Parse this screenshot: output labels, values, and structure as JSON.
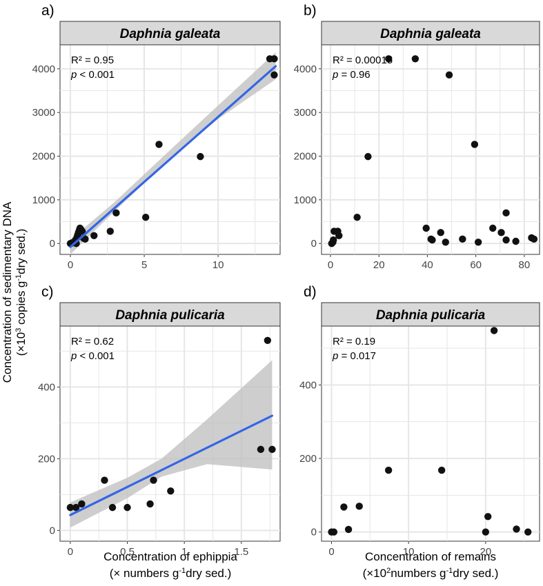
{
  "figure": {
    "y_axis_title_line1": "Concentration of sedimentary DNA",
    "y_axis_title_line2_pre": "(×10",
    "y_axis_title_line2_sup1": "3",
    "y_axis_title_line2_mid": " copies g",
    "y_axis_title_line2_sup2": "-1",
    "y_axis_title_line2_post": "dry sed.)",
    "x_axis_left_line1": "Concentration of ephippia",
    "x_axis_left_line2_pre": "(× numbers g",
    "x_axis_left_line2_sup": "-1",
    "x_axis_left_line2_post": "dry sed.)",
    "x_axis_right_line1": "Concentration of remains",
    "x_axis_right_line2_pre": "(×10",
    "x_axis_right_line2_sup1": "2",
    "x_axis_right_line2_mid": "numbers g",
    "x_axis_right_line2_sup2": "-1",
    "x_axis_right_line2_post": "dry sed.)",
    "colors": {
      "panel_bg": "#ffffff",
      "grid": "#e6e6e6",
      "strip_bg": "#d9d9d9",
      "points": "#111111",
      "fit_line": "#3366e6",
      "ci_band": "#bdbdbd"
    }
  },
  "chart_data": [
    {
      "id": "a",
      "panel_label": "a)",
      "type": "scatter",
      "title": "Daphnia galeata",
      "r2_label": "R² = 0.95",
      "p_italic": "p",
      "p_rest": " < 0.001",
      "xlim": [
        -0.7,
        14.2
      ],
      "ylim": [
        -250,
        4550
      ],
      "x_ticks": [
        0,
        5,
        10
      ],
      "y_ticks": [
        0,
        1000,
        2000,
        3000,
        4000
      ],
      "x_grid_minor": [
        2.5,
        7.5,
        12.5
      ],
      "y_grid_minor": [
        500,
        1500,
        2500,
        3500
      ],
      "points": [
        {
          "x": 0,
          "y": 0
        },
        {
          "x": 0.1,
          "y": 10
        },
        {
          "x": 0.15,
          "y": 20
        },
        {
          "x": 0.3,
          "y": 30
        },
        {
          "x": 0.35,
          "y": 80
        },
        {
          "x": 0.4,
          "y": 0
        },
        {
          "x": 0.45,
          "y": 150
        },
        {
          "x": 0.5,
          "y": 200
        },
        {
          "x": 0.55,
          "y": 250
        },
        {
          "x": 0.6,
          "y": 300
        },
        {
          "x": 0.65,
          "y": 350
        },
        {
          "x": 0.7,
          "y": 330
        },
        {
          "x": 0.8,
          "y": 280
        },
        {
          "x": 0.9,
          "y": 120
        },
        {
          "x": 1.0,
          "y": 100
        },
        {
          "x": 1.6,
          "y": 180
        },
        {
          "x": 2.7,
          "y": 280
        },
        {
          "x": 3.1,
          "y": 700
        },
        {
          "x": 5.1,
          "y": 600
        },
        {
          "x": 6.0,
          "y": 2270
        },
        {
          "x": 8.8,
          "y": 1990
        },
        {
          "x": 13.5,
          "y": 4230
        },
        {
          "x": 13.8,
          "y": 4230
        },
        {
          "x": 13.8,
          "y": 3860
        }
      ],
      "fit": {
        "x0": 0,
        "y0": -80,
        "x1": 13.9,
        "y1": 4060
      },
      "ci": [
        {
          "x": 0,
          "lo": -250,
          "hi": 90
        },
        {
          "x": 3,
          "lo": 740,
          "hi": 950
        },
        {
          "x": 7,
          "lo": 2020,
          "hi": 2220
        },
        {
          "x": 10,
          "lo": 2850,
          "hi": 3160
        },
        {
          "x": 13.9,
          "lo": 3760,
          "hi": 4380
        }
      ]
    },
    {
      "id": "b",
      "panel_label": "b)",
      "type": "scatter",
      "title": "Daphnia galeata",
      "r2_label": "R² = 0.00015",
      "p_italic": "p",
      "p_rest": " = 0.96",
      "xlim": [
        -3.7,
        86.3
      ],
      "ylim": [
        -250,
        4550
      ],
      "x_ticks": [
        0,
        20,
        40,
        60,
        80
      ],
      "y_ticks": [
        0,
        1000,
        2000,
        3000,
        4000
      ],
      "x_grid_minor": [
        10,
        30,
        50,
        70
      ],
      "y_grid_minor": [
        500,
        1500,
        2500,
        3500
      ],
      "points": [
        {
          "x": 0.5,
          "y": 0
        },
        {
          "x": 1,
          "y": 30
        },
        {
          "x": 1.2,
          "y": 80
        },
        {
          "x": 1.5,
          "y": 280
        },
        {
          "x": 3,
          "y": 280
        },
        {
          "x": 3.5,
          "y": 180
        },
        {
          "x": 11,
          "y": 600
        },
        {
          "x": 15.5,
          "y": 1990
        },
        {
          "x": 24,
          "y": 4230
        },
        {
          "x": 35,
          "y": 4230
        },
        {
          "x": 39.5,
          "y": 350
        },
        {
          "x": 41.5,
          "y": 100
        },
        {
          "x": 42,
          "y": 80
        },
        {
          "x": 45.5,
          "y": 250
        },
        {
          "x": 47.5,
          "y": 30
        },
        {
          "x": 49,
          "y": 3860
        },
        {
          "x": 54.5,
          "y": 100
        },
        {
          "x": 59.5,
          "y": 2270
        },
        {
          "x": 61,
          "y": 30
        },
        {
          "x": 67,
          "y": 350
        },
        {
          "x": 70.5,
          "y": 250
        },
        {
          "x": 72.5,
          "y": 700
        },
        {
          "x": 72.5,
          "y": 80
        },
        {
          "x": 76.5,
          "y": 50
        },
        {
          "x": 83,
          "y": 130
        },
        {
          "x": 84,
          "y": 100
        }
      ]
    },
    {
      "id": "c",
      "panel_label": "c)",
      "type": "scatter",
      "title": "Daphnia pulicaria",
      "r2_label": "R² = 0.62",
      "p_italic": "p",
      "p_rest": " < 0.001",
      "xlim": [
        -0.09,
        1.84
      ],
      "ylim": [
        -30,
        570
      ],
      "x_ticks": [
        0,
        0.5,
        1,
        1.5
      ],
      "y_ticks": [
        0,
        200,
        400
      ],
      "x_grid_minor": [
        0.25,
        0.75,
        1.25,
        1.75
      ],
      "y_grid_minor": [
        100,
        300,
        500
      ],
      "points": [
        {
          "x": 0,
          "y": 64
        },
        {
          "x": 0.05,
          "y": 64
        },
        {
          "x": 0.1,
          "y": 74
        },
        {
          "x": 0.3,
          "y": 140
        },
        {
          "x": 0.37,
          "y": 64
        },
        {
          "x": 0.5,
          "y": 64
        },
        {
          "x": 0.7,
          "y": 74
        },
        {
          "x": 0.73,
          "y": 140
        },
        {
          "x": 0.88,
          "y": 110
        },
        {
          "x": 1.67,
          "y": 226
        },
        {
          "x": 1.73,
          "y": 530
        },
        {
          "x": 1.77,
          "y": 226
        }
      ],
      "fit": {
        "x0": 0,
        "y0": 43,
        "x1": 1.77,
        "y1": 320
      },
      "ci": [
        {
          "x": 0,
          "lo": 8,
          "hi": 78
        },
        {
          "x": 0.5,
          "lo": 90,
          "hi": 147
        },
        {
          "x": 0.8,
          "lo": 150,
          "hi": 200
        },
        {
          "x": 1.2,
          "lo": 185,
          "hi": 310
        },
        {
          "x": 1.77,
          "lo": 170,
          "hi": 475
        }
      ]
    },
    {
      "id": "d",
      "panel_label": "d)",
      "type": "scatter",
      "title": "Daphnia pulicaria",
      "r2_label": "R² = 0.19",
      "p_italic": "p",
      "p_rest": " = 0.017",
      "xlim": [
        -1.3,
        27
      ],
      "ylim": [
        -25,
        560
      ],
      "x_ticks": [
        0,
        10,
        20
      ],
      "y_ticks": [
        0,
        200,
        400
      ],
      "x_grid_minor": [
        5,
        15,
        25
      ],
      "y_grid_minor": [
        100,
        300,
        500
      ],
      "points": [
        {
          "x": 0,
          "y": 0
        },
        {
          "x": 0.3,
          "y": 0
        },
        {
          "x": 1.6,
          "y": 68
        },
        {
          "x": 2.2,
          "y": 7
        },
        {
          "x": 3.6,
          "y": 70
        },
        {
          "x": 7.4,
          "y": 168
        },
        {
          "x": 14.3,
          "y": 168
        },
        {
          "x": 20,
          "y": 0
        },
        {
          "x": 20.3,
          "y": 42
        },
        {
          "x": 21.1,
          "y": 548
        },
        {
          "x": 24,
          "y": 8
        },
        {
          "x": 25.5,
          "y": 0
        }
      ]
    }
  ]
}
